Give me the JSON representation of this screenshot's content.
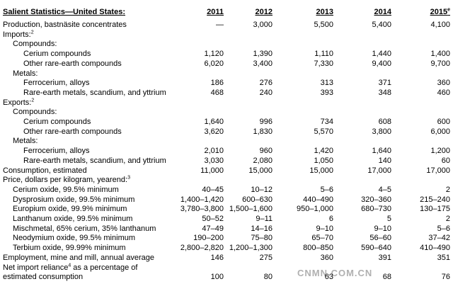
{
  "header": {
    "title": "Salient Statistics—United States:",
    "years": [
      {
        "year": "2011"
      },
      {
        "year": "2012"
      },
      {
        "year": "2013"
      },
      {
        "year": "2014"
      },
      {
        "year": "2015",
        "note": "e"
      }
    ]
  },
  "rows": [
    {
      "level": 0,
      "label": "Production, bastnäsite concentrates",
      "values": [
        "—",
        "3,000",
        "5,500",
        "5,400",
        "4,100"
      ]
    },
    {
      "level": 0,
      "label": "Imports:",
      "note": "2"
    },
    {
      "level": 1,
      "label": "Compounds:"
    },
    {
      "level": 2,
      "label": "Cerium compounds",
      "values": [
        "1,120",
        "1,390",
        "1,110",
        "1,440",
        "1,400"
      ]
    },
    {
      "level": 2,
      "label": "Other rare-earth compounds",
      "values": [
        "6,020",
        "3,400",
        "7,330",
        "9,400",
        "9,700"
      ]
    },
    {
      "level": 1,
      "label": "Metals:"
    },
    {
      "level": 2,
      "label": "Ferrocerium, alloys",
      "values": [
        "186",
        "276",
        "313",
        "371",
        "360"
      ]
    },
    {
      "level": 2,
      "label": "Rare-earth metals, scandium, and yttrium",
      "values": [
        "468",
        "240",
        "393",
        "348",
        "460"
      ]
    },
    {
      "level": 0,
      "label": "Exports:",
      "note": "2"
    },
    {
      "level": 1,
      "label": "Compounds:"
    },
    {
      "level": 2,
      "label": "Cerium compounds",
      "values": [
        "1,640",
        "996",
        "734",
        "608",
        "600"
      ]
    },
    {
      "level": 2,
      "label": "Other rare-earth compounds",
      "values": [
        "3,620",
        "1,830",
        "5,570",
        "3,800",
        "6,000"
      ]
    },
    {
      "level": 1,
      "label": "Metals:"
    },
    {
      "level": 2,
      "label": "Ferrocerium, alloys",
      "values": [
        "2,010",
        "960",
        "1,420",
        "1,640",
        "1,200"
      ]
    },
    {
      "level": 2,
      "label": "Rare-earth metals, scandium, and yttrium",
      "values": [
        "3,030",
        "2,080",
        "1,050",
        "140",
        "60"
      ]
    },
    {
      "level": 0,
      "label": "Consumption, estimated",
      "values": [
        "11,000",
        "15,000",
        "15,000",
        "17,000",
        "17,000"
      ]
    },
    {
      "level": 0,
      "label": "Price, dollars per kilogram, yearend:",
      "note": "3"
    },
    {
      "level": 1,
      "label": "Cerium oxide, 99.5% minimum",
      "values": [
        "40–45",
        "10–12",
        "5–6",
        "4–5",
        "2"
      ]
    },
    {
      "level": 1,
      "label": "Dysprosium oxide, 99.5% minimum",
      "values": [
        "1,400–1,420",
        "600–630",
        "440–490",
        "320–360",
        "215–240"
      ]
    },
    {
      "level": 1,
      "label": "Europium oxide, 99.9% minimum",
      "values": [
        "3,780–3,800",
        "1,500–1,600",
        "950–1,000",
        "680–730",
        "130–175"
      ]
    },
    {
      "level": 1,
      "label": "Lanthanum oxide, 99.5% minimum",
      "values": [
        "50–52",
        "9–11",
        "6",
        "5",
        "2"
      ]
    },
    {
      "level": 1,
      "label": "Mischmetal, 65% cerium, 35% lanthanum",
      "values": [
        "47–49",
        "14–16",
        "9–10",
        "9–10",
        "5–6"
      ]
    },
    {
      "level": 1,
      "label": "Neodymium oxide, 99.5% minimum",
      "values": [
        "190–200",
        "75–80",
        "65–70",
        "56–60",
        "37–42"
      ]
    },
    {
      "level": 1,
      "label": "Terbium oxide, 99.99% minimum",
      "values": [
        "2,800–2,820",
        "1,200–1,300",
        "800–850",
        "590–640",
        "410–490"
      ]
    },
    {
      "level": 0,
      "label": "Employment, mine and mill, annual average",
      "values": [
        "146",
        "275",
        "360",
        "391",
        "351"
      ]
    },
    {
      "level": 0,
      "label": "Net import reliance",
      "note": "4",
      "label_rest": " as a percentage of"
    },
    {
      "level": 0,
      "label": "estimated consumption",
      "values": [
        "100",
        "80",
        "63",
        "68",
        "76"
      ]
    }
  ],
  "watermark": "CNMN.COM.CN"
}
